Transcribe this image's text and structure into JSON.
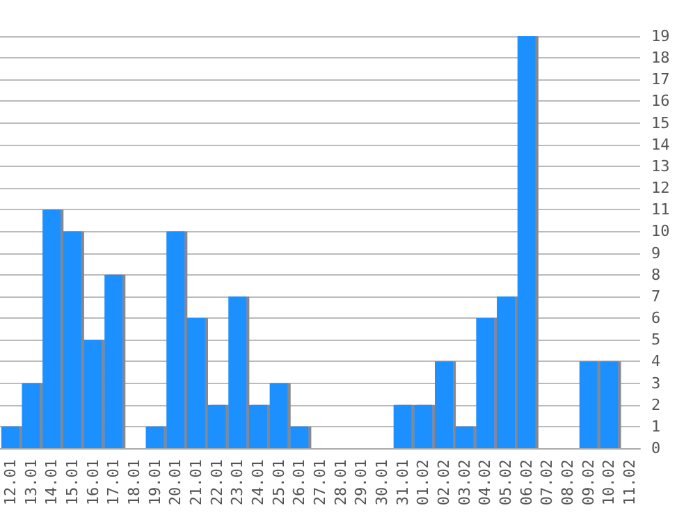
{
  "chart_data": {
    "type": "bar",
    "categories": [
      "12.01",
      "13.01",
      "14.01",
      "15.01",
      "16.01",
      "17.01",
      "18.01",
      "19.01",
      "20.01",
      "21.01",
      "22.01",
      "23.01",
      "24.01",
      "25.01",
      "26.01",
      "27.01",
      "28.01",
      "29.01",
      "30.01",
      "31.01",
      "01.02",
      "02.02",
      "03.02",
      "04.02",
      "05.02",
      "06.02",
      "07.02",
      "08.02",
      "09.02",
      "10.02",
      "11.02"
    ],
    "series": [
      {
        "color": "#1e90ff",
        "values": [
          1,
          3,
          11,
          10,
          5,
          8,
          0,
          1,
          10,
          6,
          2,
          7,
          2,
          3,
          1,
          0,
          0,
          0,
          0,
          2,
          2,
          4,
          1,
          6,
          7,
          19,
          0,
          0,
          4,
          4,
          0
        ]
      }
    ],
    "ylim": [
      0,
      19
    ],
    "yticks": [
      0,
      1,
      2,
      3,
      4,
      5,
      6,
      7,
      8,
      9,
      10,
      11,
      12,
      13,
      14,
      15,
      16,
      17,
      18,
      19
    ],
    "grid": "y"
  }
}
